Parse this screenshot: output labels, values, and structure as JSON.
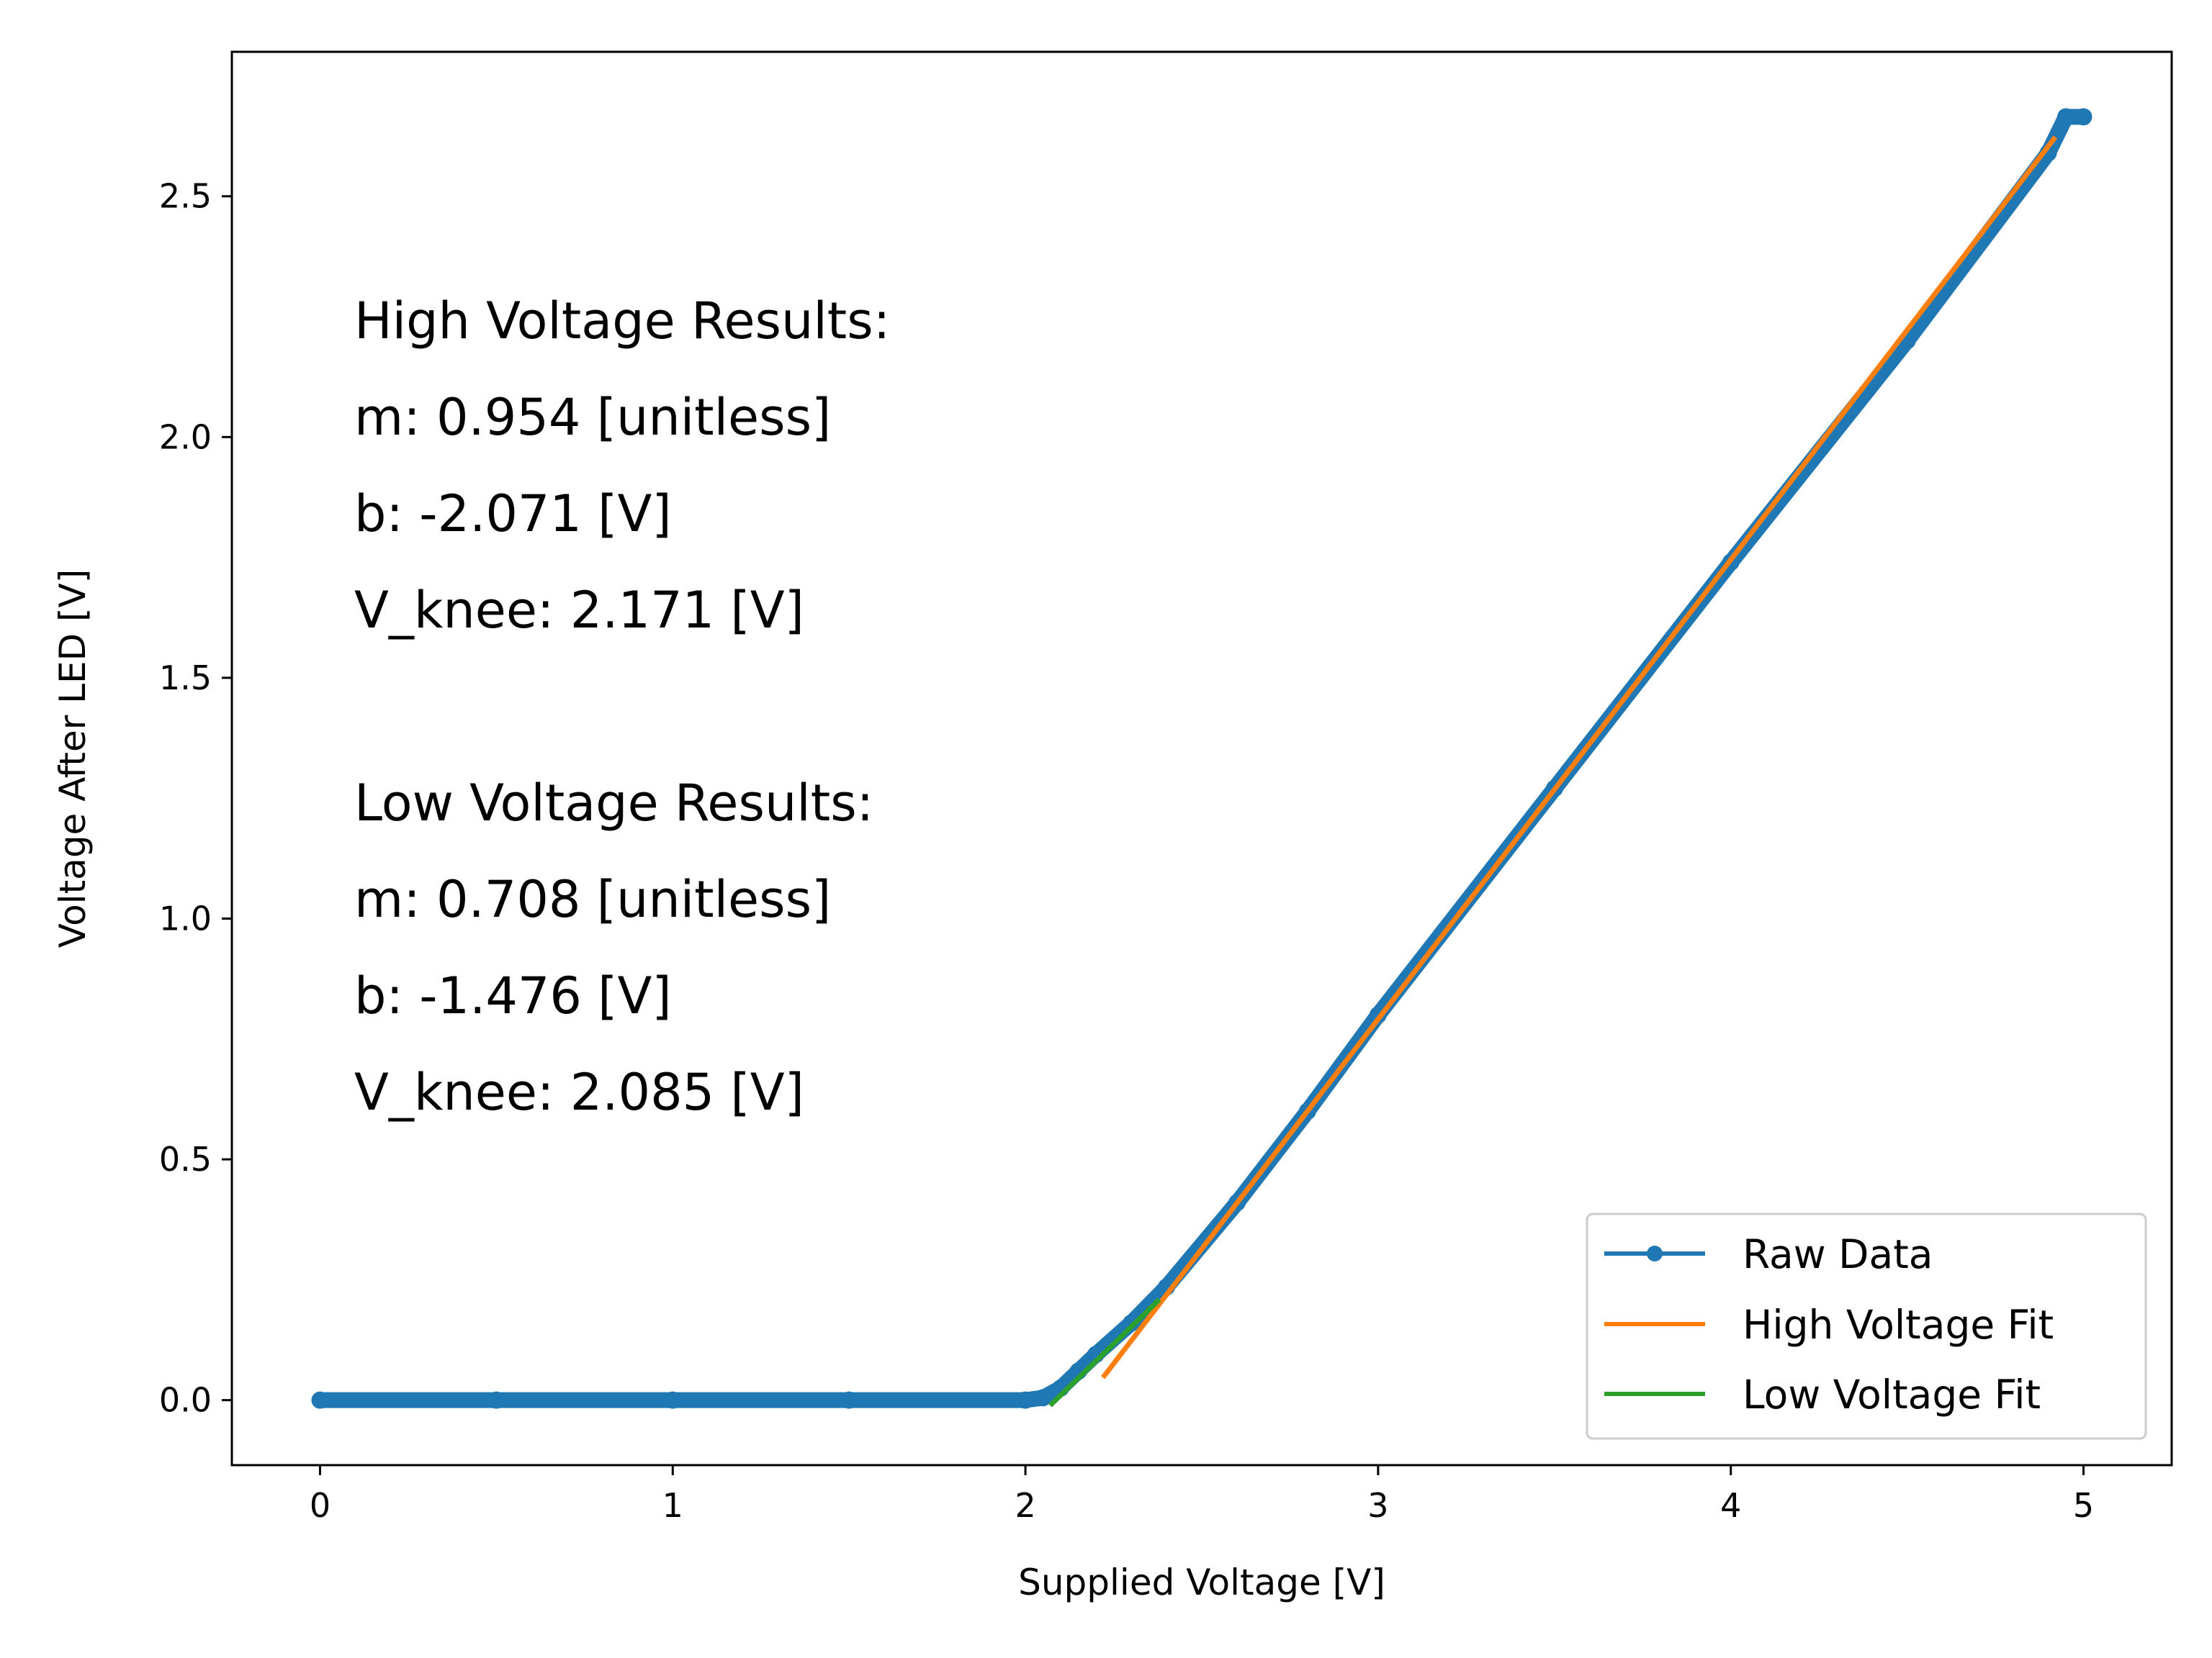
{
  "chart_data": {
    "type": "line",
    "xlabel": "Supplied Voltage [V]",
    "ylabel": "Voltage After LED [V]",
    "xlim": [
      -0.25,
      5.25
    ],
    "ylim": [
      -0.135,
      2.8
    ],
    "xticks": [
      0,
      1,
      2,
      3,
      4,
      5
    ],
    "xtick_labels": [
      "0",
      "1",
      "2",
      "3",
      "4",
      "5"
    ],
    "yticks": [
      0.0,
      0.5,
      1.0,
      1.5,
      2.0,
      2.5
    ],
    "ytick_labels": [
      "0.0",
      "0.5",
      "1.0",
      "1.5",
      "2.0",
      "2.5"
    ],
    "grid": false,
    "legend_position": "lower-right",
    "series": [
      {
        "name": "Raw Data",
        "color": "#1f77b4",
        "marker": "circle",
        "x": [
          0.0,
          0.5,
          1.0,
          1.5,
          2.0,
          2.05,
          2.1,
          2.15,
          2.2,
          2.3,
          2.4,
          2.6,
          2.8,
          3.0,
          3.5,
          4.0,
          4.5,
          4.9,
          4.95,
          5.0
        ],
        "y": [
          0.0,
          0.0,
          0.0,
          0.0,
          0.0,
          0.005,
          0.025,
          0.06,
          0.095,
          0.16,
          0.235,
          0.41,
          0.6,
          0.8,
          1.27,
          1.74,
          2.2,
          2.59,
          2.665,
          2.665
        ]
      },
      {
        "name": "High Voltage Fit",
        "color": "#ff7f0e",
        "x": [
          2.22,
          4.92
        ],
        "y": [
          0.047,
          2.623
        ]
      },
      {
        "name": "Low Voltage Fit",
        "color": "#2ca02c",
        "x": [
          2.07,
          2.38
        ],
        "y": [
          -0.011,
          0.209
        ]
      }
    ],
    "annotations": [
      "High Voltage Results:",
      "m: 0.954 [unitless]",
      "b: -2.071 [V]",
      "V_knee: 2.171 [V]",
      "",
      "Low Voltage Results:",
      "m: 0.708 [unitless]",
      "b: -1.476 [V]",
      "V_knee: 2.085 [V]"
    ]
  }
}
